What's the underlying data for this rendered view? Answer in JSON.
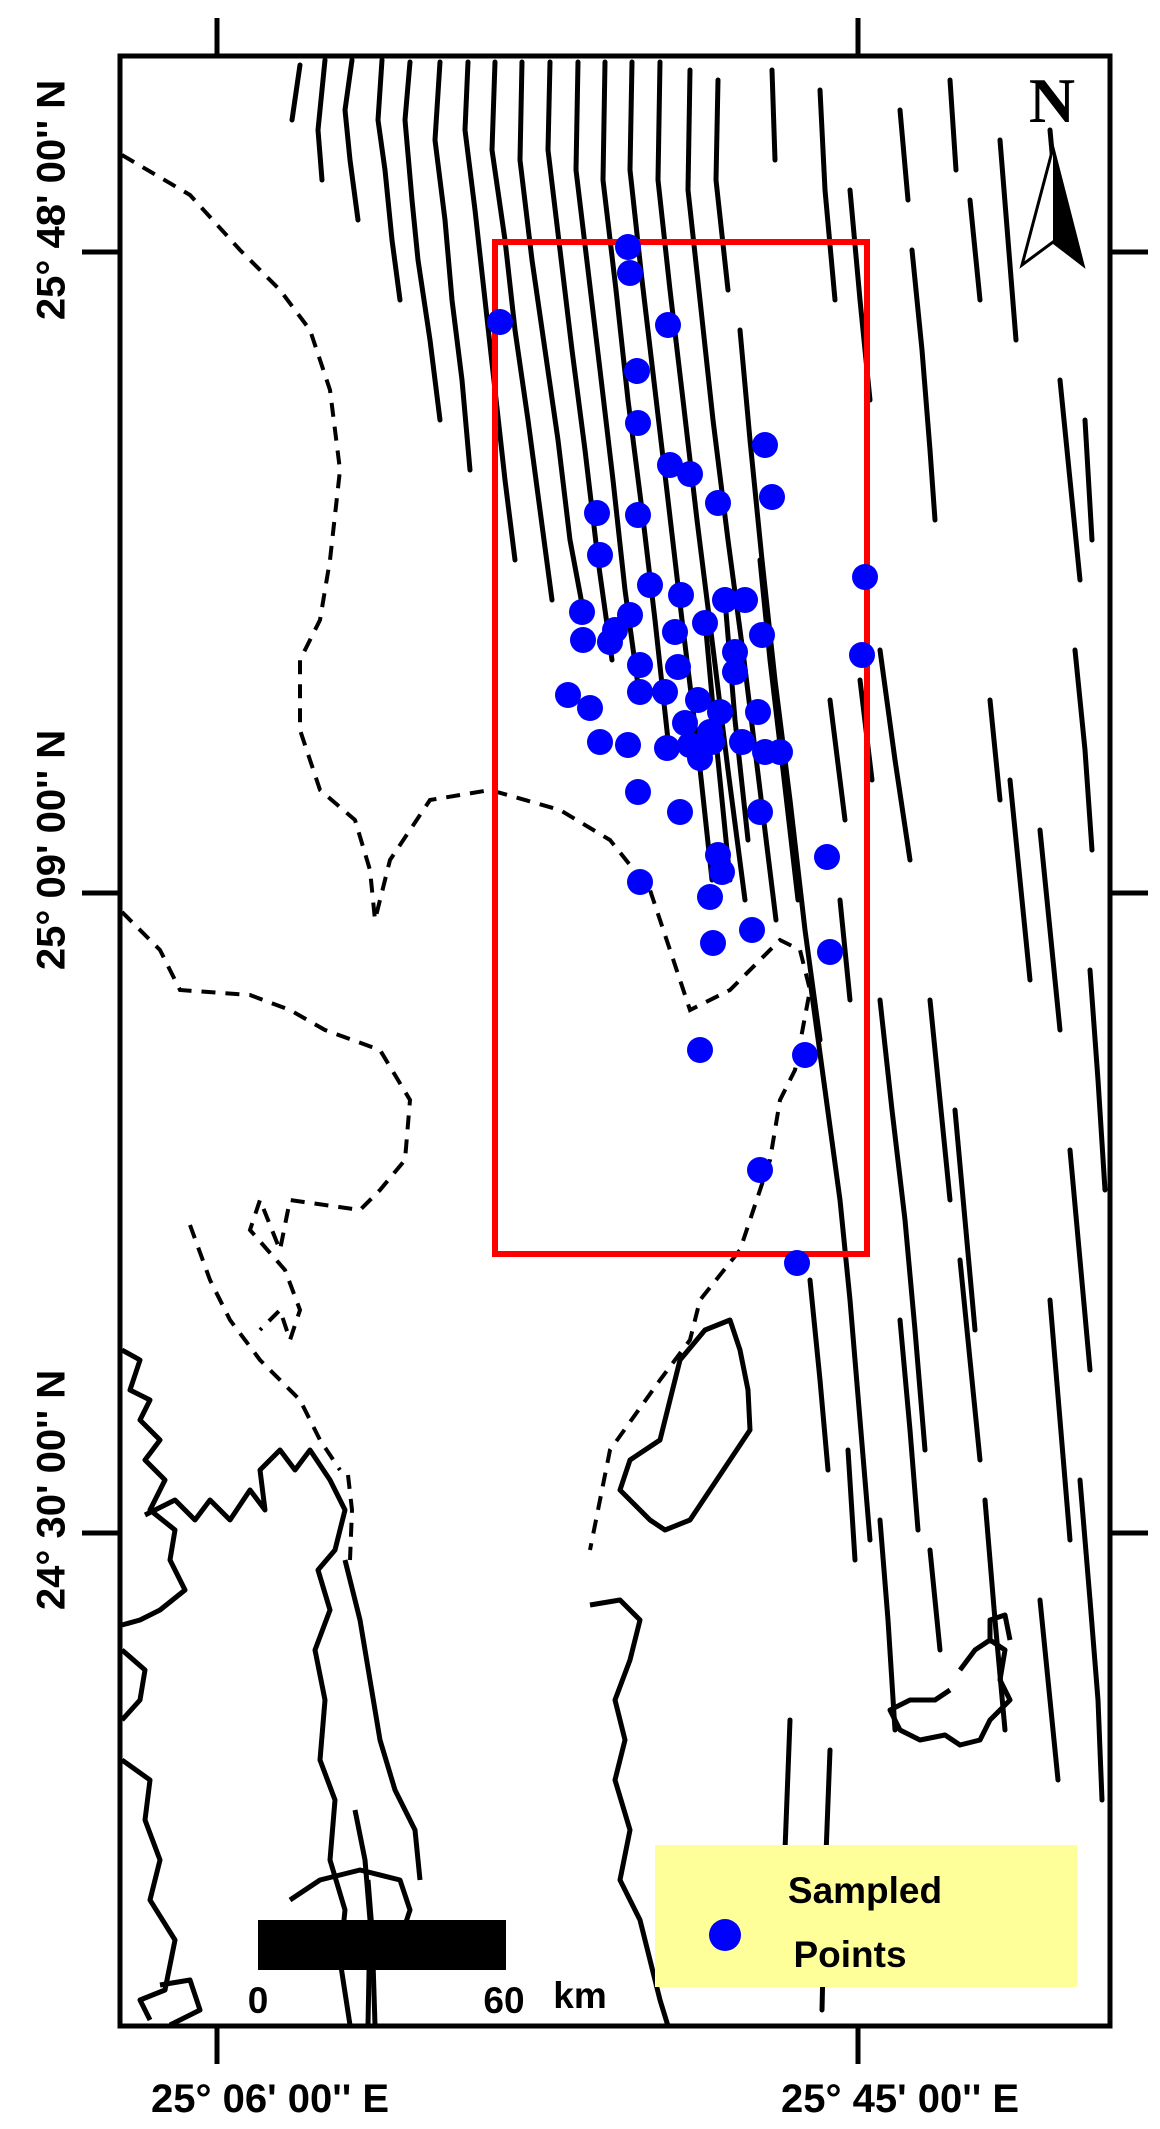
{
  "axes": {
    "latitude_labels": [
      "25° 48' 00'' N",
      "25° 09' 00'' N",
      "24° 30' 00'' N"
    ],
    "longitude_labels": [
      "25° 06' 00'' E",
      "25° 45' 00'' E"
    ]
  },
  "north_arrow": {
    "label": "N"
  },
  "scale_bar": {
    "start_label": "0",
    "end_label": "60",
    "unit_label": "km"
  },
  "legend": {
    "entries": [
      {
        "label_line1": "Sampled",
        "label_line2": "Points",
        "color": "#0000ff"
      }
    ],
    "background_color": "#ffff99"
  },
  "study_area": {
    "outline_color": "#ff0000"
  },
  "sample_points_count": 68,
  "colors": {
    "faults": "#000000",
    "samples": "#0000ff",
    "frame": "#000000"
  }
}
